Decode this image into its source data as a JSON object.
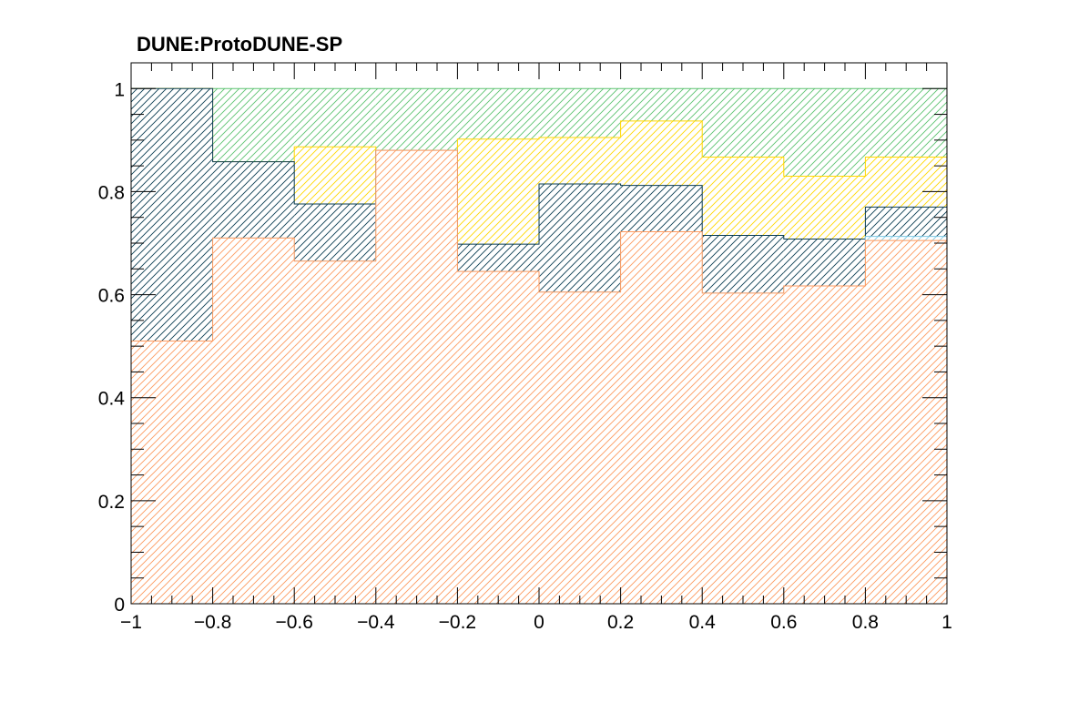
{
  "chart_data": {
    "type": "area",
    "stacking": "stacked histogram",
    "title": "DUNE:ProtoDUNE-SP",
    "xlabel": "",
    "ylabel": "",
    "xlim": [
      -1,
      1
    ],
    "ylim": [
      0,
      1.05
    ],
    "bin_edges": [
      -1,
      -0.8,
      -0.6,
      -0.4,
      -0.2,
      0,
      0.2,
      0.4,
      0.6,
      0.8,
      1
    ],
    "x_tick_labels": [
      "−1",
      "−0.8",
      "−0.6",
      "−0.4",
      "−0.2",
      "0",
      "0.2",
      "0.4",
      "0.6",
      "0.8",
      "1"
    ],
    "x_ticks": [
      -1,
      -0.8,
      -0.6,
      -0.4,
      -0.2,
      0,
      0.2,
      0.4,
      0.6,
      0.8,
      1
    ],
    "y_tick_labels": [
      "0",
      "0.2",
      "0.4",
      "0.6",
      "0.8",
      "1"
    ],
    "y_ticks": [
      0,
      0.2,
      0.4,
      0.6,
      0.8,
      1
    ],
    "grid": false,
    "legend": "none",
    "series": [
      {
        "color": "#fd9a5f",
        "hatch": "diagonal",
        "values": [
          0.51,
          0.71,
          0.665,
          0.88,
          0.645,
          0.605,
          0.722,
          0.603,
          0.617,
          0.705
        ]
      },
      {
        "color": "#7ec8e3",
        "hatch": "diagonal",
        "values": [
          0.51,
          0.71,
          0.665,
          0.88,
          0.645,
          0.605,
          0.722,
          0.603,
          0.617,
          0.713
        ]
      },
      {
        "color": "#0a3d52",
        "hatch": "diagonal",
        "values": [
          1.0,
          0.858,
          0.776,
          0.88,
          0.698,
          0.815,
          0.812,
          0.715,
          0.708,
          0.77
        ]
      },
      {
        "color": "#ffd700",
        "hatch": "diagonal",
        "values": [
          1.0,
          0.858,
          0.887,
          0.88,
          0.902,
          0.905,
          0.937,
          0.867,
          0.83,
          0.867
        ]
      },
      {
        "color": "#5cc270",
        "hatch": "diagonal",
        "values": [
          1.0,
          1.0,
          1.0,
          1.0,
          1.0,
          1.0,
          1.0,
          1.0,
          1.0,
          1.0
        ]
      }
    ]
  }
}
